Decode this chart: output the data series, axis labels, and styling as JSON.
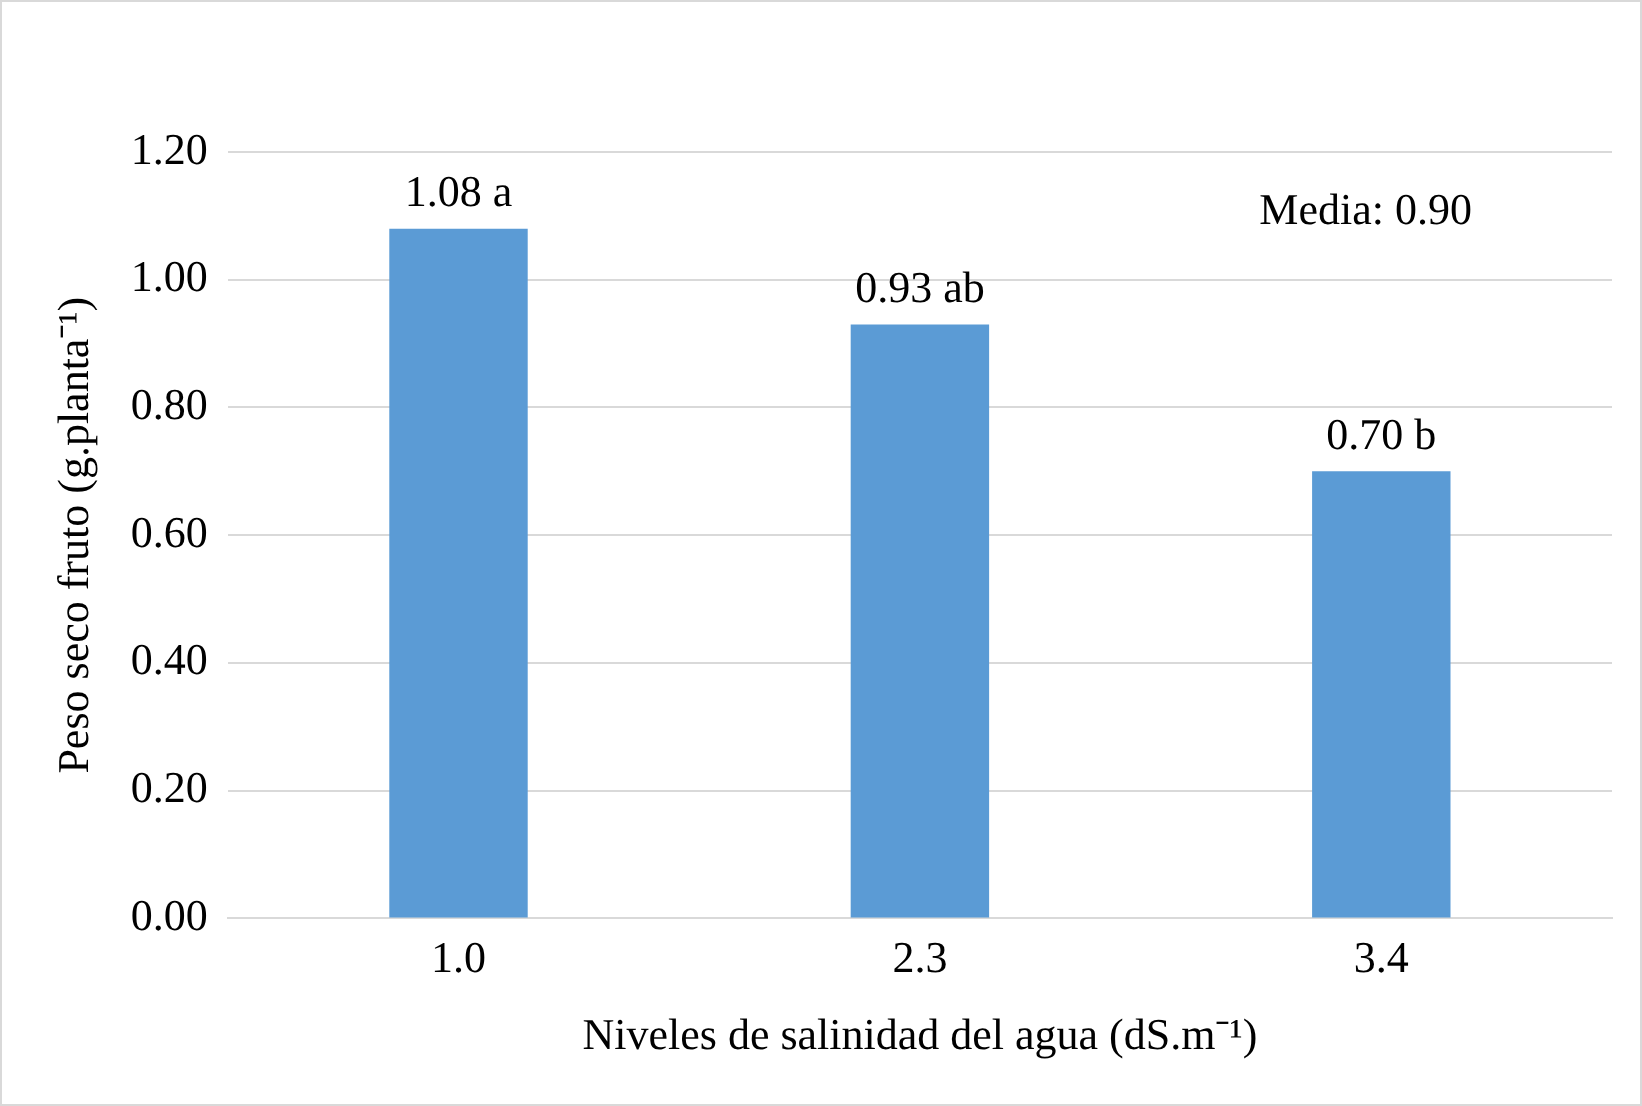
{
  "chart_data": {
    "type": "bar",
    "ylabel": "Peso seco fruto (g.planta⁻¹)",
    "xlabel": "Niveles de salinidad del agua (dS.m⁻¹)",
    "categories": [
      "1.0",
      "2.3",
      "3.4"
    ],
    "values": [
      1.08,
      0.93,
      0.7
    ],
    "value_labels": [
      "1.08 a",
      "0.93 ab",
      "0.70 b"
    ],
    "color": "#5b9bd5",
    "ylim": [
      0,
      1.2
    ],
    "yticks": [
      {
        "value": 0,
        "label": "0.00"
      },
      {
        "value": 0.2,
        "label": "0.20"
      },
      {
        "value": 0.4,
        "label": "0.40"
      },
      {
        "value": 0.6,
        "label": "0.60"
      },
      {
        "value": 0.8,
        "label": "0.80"
      },
      {
        "value": 1.0,
        "label": "1.00"
      },
      {
        "value": 1.2,
        "label": "1.20"
      }
    ],
    "grid": "y",
    "legend": false,
    "annotations": [
      "Media: 0.90"
    ]
  }
}
